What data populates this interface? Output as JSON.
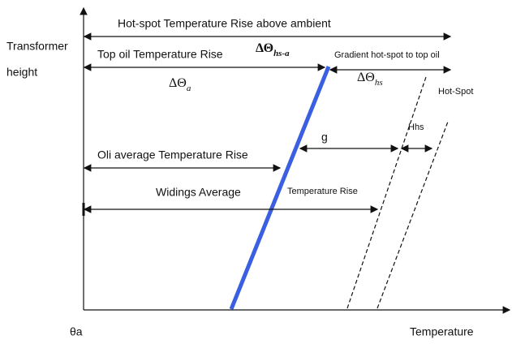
{
  "y_axis_label": [
    "Transformer",
    "height"
  ],
  "x_axis_label": "Temperature",
  "origin_label": "θa",
  "labels": {
    "hot_spot_rise": "Hot-spot Temperature Rise above ambient",
    "top_oil_rise": "Top oil Temperature Rise",
    "gradient": "Gradient hot-spot to top oil",
    "oil_average": "Oli average Temperature Rise",
    "windings_average": "Widings Average",
    "temperature_rise": "Temperature Rise",
    "hot_spot": "Hot-Spot",
    "g": "g",
    "hhs": "Hhs"
  },
  "symbols": {
    "hs_a": {
      "symbol": "ΔΘ",
      "subscript": "hs-a"
    },
    "a": {
      "symbol": "ΔΘ",
      "subscript": "a"
    },
    "hs": {
      "symbol": "ΔΘ",
      "subscript": "hs"
    }
  }
}
